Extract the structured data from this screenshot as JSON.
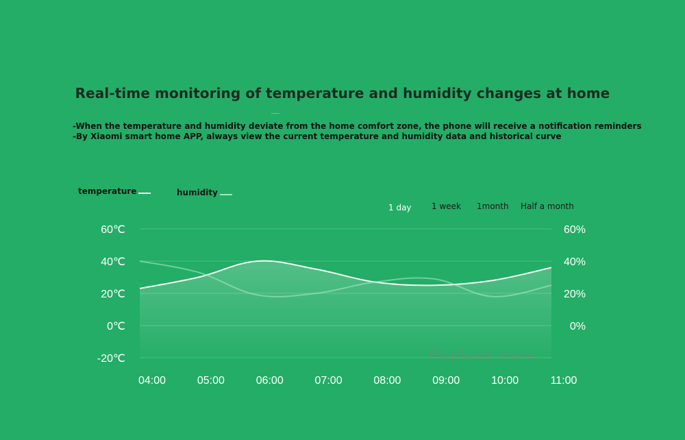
{
  "header": {
    "title": "Real-time monitoring of temperature and humidity changes at home",
    "bullets": [
      "-When the temperature and humidity deviate from the home comfort zone, the phone will receive a notification reminders",
      "-By Xiaomi smart home APP, always view the current temperature and humidity data and historical curve"
    ]
  },
  "legend": {
    "temperature": "temperature",
    "humidity": "humidity"
  },
  "ranges": {
    "items": [
      "1 day",
      "1 week",
      "1month",
      "Half a month"
    ],
    "selected": "1 day"
  },
  "watermark": "Elephant store",
  "colors": {
    "background": "#23ad66",
    "temperature_line": "#ffffff",
    "humidity_line": "#a6e6c2"
  },
  "chart_data": {
    "type": "line",
    "x": [
      "04:00",
      "05:00",
      "06:00",
      "07:00",
      "08:00",
      "09:00",
      "10:00",
      "11:00"
    ],
    "series": [
      {
        "name": "temperature",
        "axis": "left",
        "values": [
          23,
          30,
          40,
          35,
          27,
          25,
          28,
          36
        ]
      },
      {
        "name": "humidity",
        "axis": "right",
        "values": [
          40,
          33,
          19,
          20,
          27,
          29,
          18,
          25
        ]
      }
    ],
    "y_left": {
      "ticks": [
        "60℃",
        "40℃",
        "20℃",
        "0℃",
        "-20℃"
      ],
      "range": [
        -20,
        60
      ]
    },
    "y_right": {
      "ticks": [
        "60%",
        "40%",
        "20%",
        "0%"
      ],
      "range": [
        -20,
        60
      ]
    },
    "grid": true,
    "legend_position": "top-left"
  }
}
